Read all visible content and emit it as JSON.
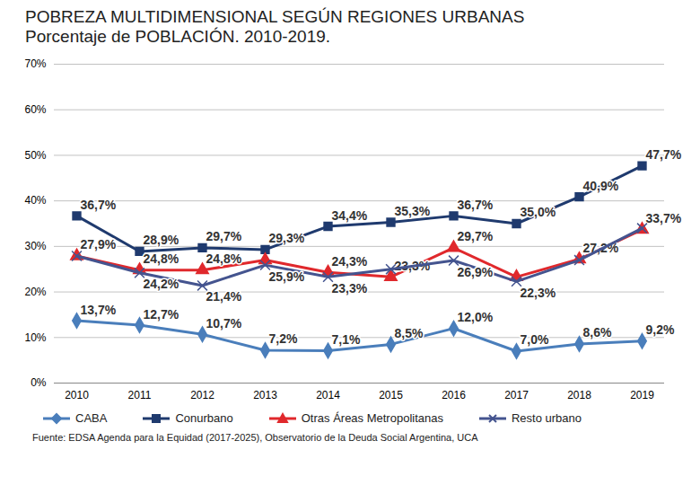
{
  "chart_data": {
    "type": "line",
    "title": "POBREZA MULTIDIMENSIONAL SEGÚN REGIONES URBANAS",
    "subtitle": "Porcentaje de POBLACIÓN. 2010-2019.",
    "caption": "Fuente: EDSA Agenda para la Equidad (2017-2025), Observatorio de la Deuda Social Argentina, UCA",
    "categories": [
      "2010",
      "2011",
      "2012",
      "2013",
      "2014",
      "2015",
      "2016",
      "2017",
      "2018",
      "2019"
    ],
    "ylim": [
      0,
      70
    ],
    "yticks": [
      {
        "value": 0,
        "label": "0%"
      },
      {
        "value": 10,
        "label": "10%"
      },
      {
        "value": 20,
        "label": "20%"
      },
      {
        "value": 30,
        "label": "30%"
      },
      {
        "value": 40,
        "label": "40%"
      },
      {
        "value": 50,
        "label": "50%"
      },
      {
        "value": 60,
        "label": "60%"
      },
      {
        "value": 70,
        "label": "70%"
      }
    ],
    "grid": true,
    "legend": "bottom",
    "data_labels": true,
    "series": [
      {
        "name": "CABA",
        "color": "#4a7ebb",
        "marker": "diamond",
        "values": [
          13.7,
          12.7,
          10.7,
          7.2,
          7.1,
          8.5,
          12.0,
          7.0,
          8.6,
          9.2
        ],
        "value_labels": [
          "13,7%",
          "12,7%",
          "10,7%",
          "7,2%",
          "7,1%",
          "8,5%",
          "12,0%",
          "7,0%",
          "8,6%",
          "9,2%"
        ]
      },
      {
        "name": "Conurbano",
        "color": "#1f3a6e",
        "marker": "square",
        "values": [
          36.7,
          28.9,
          29.7,
          29.3,
          34.4,
          35.3,
          36.7,
          35.0,
          40.9,
          47.7
        ],
        "value_labels": [
          "36,7%",
          "28,9%",
          "29,7%",
          "29,3%",
          "34,4%",
          "35,3%",
          "36,7%",
          "35,0%",
          "40,9%",
          "47,7%"
        ]
      },
      {
        "name": "Otras Áreas Metropolitanas",
        "color": "#e0282c",
        "marker": "triangle",
        "values": [
          27.9,
          24.8,
          24.8,
          27.0,
          24.3,
          23.3,
          29.7,
          23.3,
          27.2,
          33.7
        ],
        "value_labels": [
          "27,9%",
          "24,8%",
          "24,8%",
          null,
          "24,3%",
          "23,3%",
          "29,7%",
          null,
          "27,2%",
          "33,7%"
        ]
      },
      {
        "name": "Resto urbano",
        "color": "#44548f",
        "marker": "times",
        "values": [
          27.9,
          24.2,
          21.4,
          25.9,
          23.3,
          25.0,
          26.9,
          22.3,
          27.0,
          34.0
        ],
        "value_labels": [
          null,
          "24,2%",
          "21,4%",
          "25,9%",
          "23,3%",
          null,
          "26,9%",
          "22,3%",
          null,
          null
        ]
      }
    ]
  }
}
